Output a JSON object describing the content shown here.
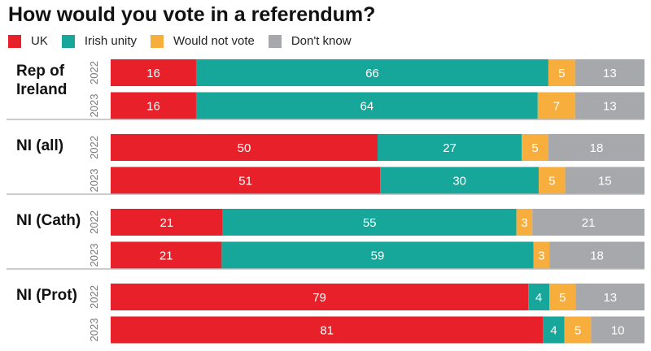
{
  "chart_data": {
    "type": "bar",
    "orientation": "horizontal-stacked-100",
    "title": "How would you vote in a referendum?",
    "legend_position": "top-left",
    "series": [
      {
        "name": "UK",
        "color": "#e8202a"
      },
      {
        "name": "Irish unity",
        "color": "#16a79a"
      },
      {
        "name": "Would not vote",
        "color": "#f7ae3c"
      },
      {
        "name": "Don't know",
        "color": "#a7a8ab"
      }
    ],
    "groups": [
      {
        "label": "Rep of\nIreland",
        "rows": [
          {
            "year": "2022",
            "values": [
              16,
              66,
              5,
              13
            ]
          },
          {
            "year": "2023",
            "values": [
              16,
              64,
              7,
              13
            ]
          }
        ]
      },
      {
        "label": "NI (all)",
        "rows": [
          {
            "year": "2022",
            "values": [
              50,
              27,
              5,
              18
            ]
          },
          {
            "year": "2023",
            "values": [
              51,
              30,
              5,
              15
            ]
          }
        ]
      },
      {
        "label": "NI (Cath)",
        "rows": [
          {
            "year": "2022",
            "values": [
              21,
              55,
              3,
              21
            ]
          },
          {
            "year": "2023",
            "values": [
              21,
              59,
              3,
              18
            ]
          }
        ]
      },
      {
        "label": "NI (Prot)",
        "rows": [
          {
            "year": "2022",
            "values": [
              79,
              4,
              5,
              13
            ]
          },
          {
            "year": "2023",
            "values": [
              81,
              4,
              5,
              10
            ]
          }
        ]
      }
    ]
  }
}
